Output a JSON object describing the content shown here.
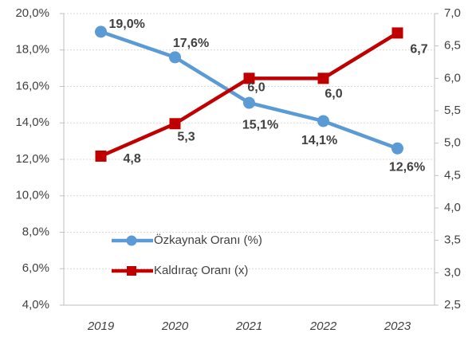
{
  "chart_data": {
    "type": "line",
    "categories": [
      "2019",
      "2020",
      "2021",
      "2022",
      "2023"
    ],
    "series": [
      {
        "name": "Özkaynak Oranı (%)",
        "color": "#5b9bd5",
        "values": [
          19.0,
          17.6,
          15.1,
          14.1,
          12.6
        ],
        "value_labels": [
          "19,0%",
          "17,6%",
          "15,1%",
          "14,1%",
          "12,6%"
        ],
        "marker": "circle"
      },
      {
        "name": "Kaldıraç Oranı (x)",
        "color": "#c00000",
        "axis": "y2",
        "values": [
          4.8,
          5.3,
          6.0,
          6.0,
          6.7
        ],
        "value_labels": [
          "4,8",
          "5,3",
          "6,0",
          "6,0",
          "6,7"
        ],
        "marker": "square"
      }
    ],
    "ylim": [
      4,
      20
    ],
    "yticks": [
      {
        "value": 4,
        "label": "4,0%"
      },
      {
        "value": 6,
        "label": "6,0%"
      },
      {
        "value": 8,
        "label": "8,0%"
      },
      {
        "value": 10,
        "label": "10,0%"
      },
      {
        "value": 12,
        "label": "12,0%"
      },
      {
        "value": 14,
        "label": "14,0%"
      },
      {
        "value": 16,
        "label": "16,0%"
      },
      {
        "value": 18,
        "label": "18,0%"
      },
      {
        "value": 20,
        "label": "20,0%"
      }
    ],
    "y2lim": [
      2.5,
      7
    ],
    "y2ticks": [
      {
        "value": 2.5,
        "label": "2,5"
      },
      {
        "value": 3,
        "label": "3,0"
      },
      {
        "value": 3.5,
        "label": "3,5"
      },
      {
        "value": 4,
        "label": "4,0"
      },
      {
        "value": 4.5,
        "label": "4,5"
      },
      {
        "value": 5,
        "label": "5,0"
      },
      {
        "value": 5.5,
        "label": "5,5"
      },
      {
        "value": 6,
        "label": "6,0"
      },
      {
        "value": 6.5,
        "label": "6,5"
      },
      {
        "value": 7,
        "label": "7,0"
      }
    ],
    "grid": true,
    "legend": "lower left"
  }
}
